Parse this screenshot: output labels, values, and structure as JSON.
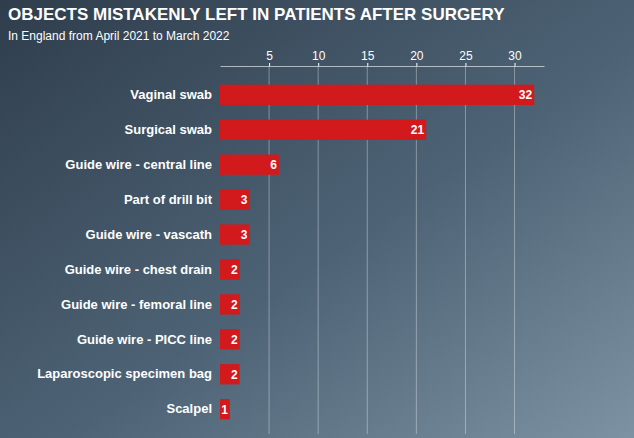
{
  "chart_data": {
    "type": "bar",
    "orientation": "horizontal",
    "title": "OBJECTS MISTAKENLY LEFT IN PATIENTS AFTER SURGERY",
    "subtitle": "In England from April 2021 to March 2022",
    "categories": [
      "Vaginal swab",
      "Surgical swab",
      "Guide wire - central line",
      "Part of drill bit",
      "Guide wire - vascath",
      "Guide wire - chest drain",
      "Guide wire - femoral line",
      "Guide wire - PICC line",
      "Laparoscopic specimen bag",
      "Scalpel"
    ],
    "values": [
      32,
      21,
      6,
      3,
      3,
      2,
      2,
      2,
      2,
      1
    ],
    "color": "#d2191c",
    "xlim": [
      0,
      33
    ],
    "xticks": [
      5,
      10,
      15,
      20,
      25,
      30
    ],
    "grid": true,
    "data_labels": true
  }
}
